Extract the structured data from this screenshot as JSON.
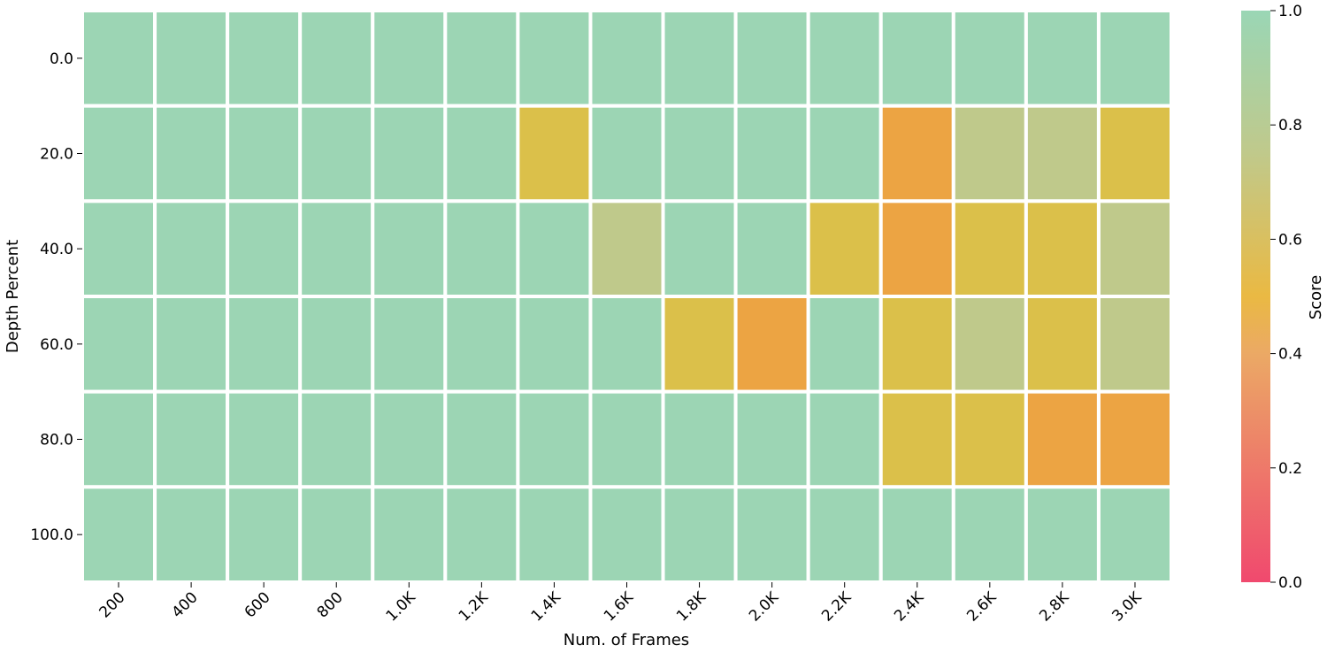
{
  "chart_data": {
    "type": "heatmap",
    "title": "",
    "xlabel": "Num. of Frames",
    "ylabel": "Depth Percent",
    "x_categories": [
      "200",
      "400",
      "600",
      "800",
      "1.0K",
      "1.2K",
      "1.4K",
      "1.6K",
      "1.8K",
      "2.0K",
      "2.2K",
      "2.4K",
      "2.6K",
      "2.8K",
      "3.0K"
    ],
    "y_categories": [
      "0.0",
      "20.0",
      "40.0",
      "60.0",
      "80.0",
      "100.0"
    ],
    "values": [
      [
        1.0,
        1.0,
        1.0,
        1.0,
        1.0,
        1.0,
        1.0,
        1.0,
        1.0,
        1.0,
        1.0,
        1.0,
        1.0,
        1.0,
        1.0
      ],
      [
        1.0,
        1.0,
        1.0,
        1.0,
        1.0,
        1.0,
        0.6,
        1.0,
        1.0,
        1.0,
        1.0,
        0.4,
        0.8,
        0.8,
        0.6
      ],
      [
        1.0,
        1.0,
        1.0,
        1.0,
        1.0,
        1.0,
        1.0,
        0.8,
        1.0,
        1.0,
        0.6,
        0.4,
        0.6,
        0.6,
        0.8
      ],
      [
        1.0,
        1.0,
        1.0,
        1.0,
        1.0,
        1.0,
        1.0,
        1.0,
        0.6,
        0.4,
        1.0,
        0.6,
        0.8,
        0.6,
        0.8
      ],
      [
        1.0,
        1.0,
        1.0,
        1.0,
        1.0,
        1.0,
        1.0,
        1.0,
        1.0,
        1.0,
        1.0,
        0.6,
        0.6,
        0.4,
        0.4
      ],
      [
        1.0,
        1.0,
        1.0,
        1.0,
        1.0,
        1.0,
        1.0,
        1.0,
        1.0,
        1.0,
        1.0,
        1.0,
        1.0,
        1.0,
        1.0
      ]
    ],
    "colorbar": {
      "label": "Score",
      "range": [
        0.0,
        1.0
      ],
      "ticks": [
        "0.0",
        "0.2",
        "0.4",
        "0.6",
        "0.8",
        "1.0"
      ],
      "colors": [
        "#f0496e",
        "#eba965",
        "#eab943",
        "#c0c98b",
        "#9ad6b5"
      ]
    },
    "grid": false,
    "legend": "colorbar-right"
  }
}
